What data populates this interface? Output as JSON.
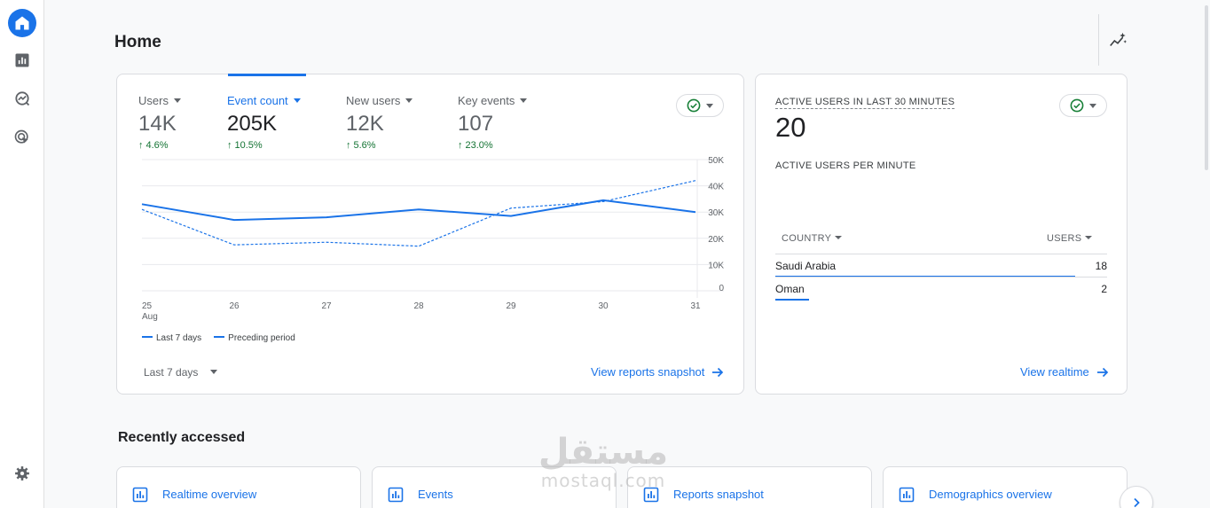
{
  "nav": {
    "items": [
      {
        "icon": "home-icon",
        "active": true
      },
      {
        "icon": "reports-icon",
        "active": false
      },
      {
        "icon": "explore-icon",
        "active": false
      },
      {
        "icon": "advertising-icon",
        "active": false
      }
    ],
    "settings_icon": "gear-icon"
  },
  "header": {
    "title": "Home",
    "insights_icon": "insights-icon"
  },
  "overview": {
    "metrics": [
      {
        "label": "Users",
        "value": "14K",
        "change": "4.6%"
      },
      {
        "label": "Event count",
        "value": "205K",
        "change": "10.5%"
      },
      {
        "label": "New users",
        "value": "12K",
        "change": "5.6%"
      },
      {
        "label": "Key events",
        "value": "107",
        "change": "23.0%"
      }
    ],
    "selected_metric": 1,
    "legend": {
      "current": "Last 7 days",
      "previous": "Preceding period"
    },
    "date_range": "Last 7 days",
    "link": "View reports snapshot"
  },
  "chart_data": {
    "type": "line",
    "x": [
      "25",
      "26",
      "27",
      "28",
      "29",
      "30",
      "31"
    ],
    "x_sublabel": "Aug",
    "y_ticks": [
      "50K",
      "40K",
      "30K",
      "20K",
      "10K",
      "0"
    ],
    "ylim": [
      0,
      50000
    ],
    "series": [
      {
        "name": "Last 7 days",
        "style": "solid",
        "values": [
          33000,
          27000,
          28000,
          31000,
          28500,
          34500,
          30000
        ]
      },
      {
        "name": "Preceding period",
        "style": "dashed",
        "values": [
          31000,
          17500,
          18500,
          17000,
          31500,
          34000,
          42000
        ]
      }
    ],
    "color": "#1a73e8",
    "grid": true
  },
  "realtime": {
    "title": "ACTIVE USERS IN LAST 30 MINUTES",
    "count": "20",
    "subtitle": "ACTIVE USERS PER MINUTE",
    "col_country": "COUNTRY",
    "col_users": "USERS",
    "rows": [
      {
        "country": "Saudi Arabia",
        "users": "18",
        "share": 0.9
      },
      {
        "country": "Oman",
        "users": "2",
        "share": 0.1
      }
    ],
    "link": "View realtime"
  },
  "recent": {
    "title": "Recently accessed",
    "items": [
      {
        "label": "Realtime overview"
      },
      {
        "label": "Events"
      },
      {
        "label": "Reports snapshot"
      },
      {
        "label": "Demographics overview"
      }
    ]
  },
  "watermark": {
    "arabic": "مستقل",
    "latin": "mostaql.com"
  },
  "colors": {
    "accent": "#1a73e8",
    "positive": "#137333",
    "check": "#188038"
  }
}
